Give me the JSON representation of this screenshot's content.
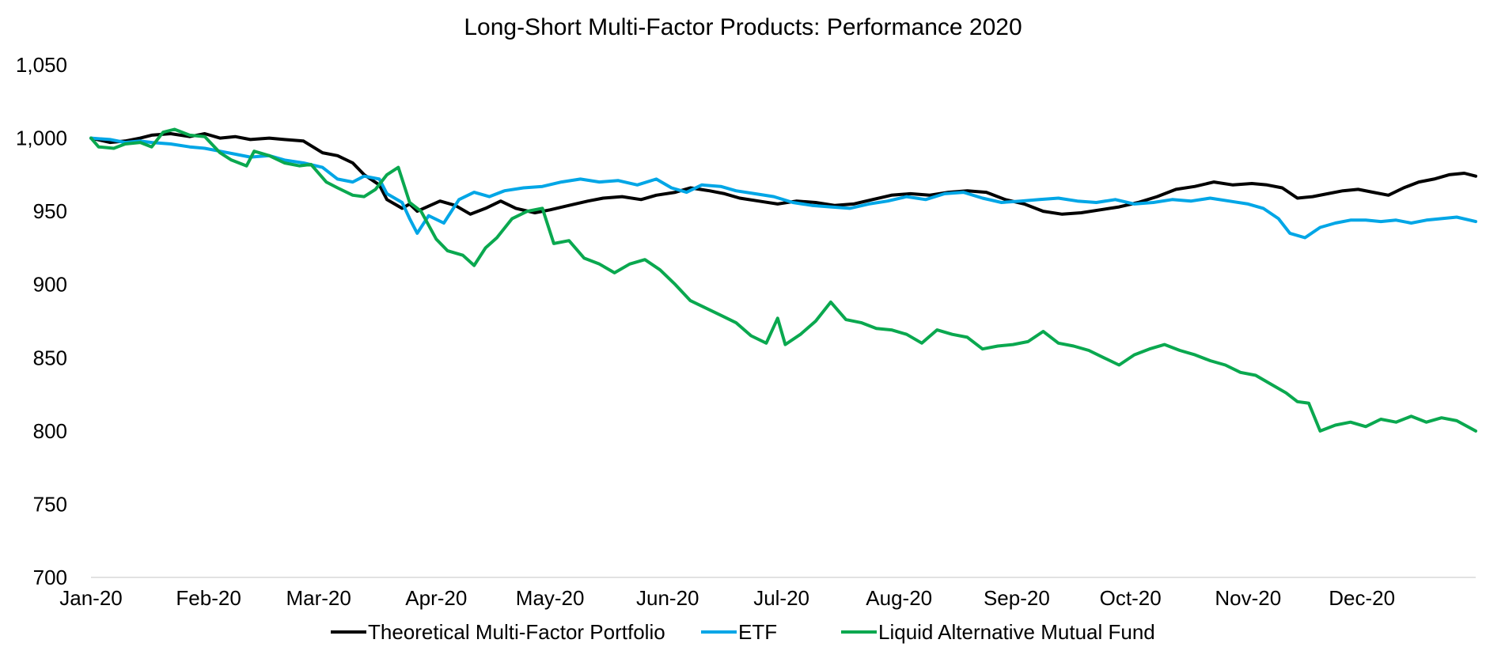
{
  "chart_data": {
    "type": "line",
    "title": "Long-Short Multi-Factor Products: Performance 2020",
    "xlabel": "",
    "ylabel": "",
    "x_tick_labels": [
      "Jan-20",
      "Feb-20",
      "Mar-20",
      "Apr-20",
      "May-20",
      "Jun-20",
      "Jul-20",
      "Aug-20",
      "Sep-20",
      "Oct-20",
      "Nov-20",
      "Dec-20"
    ],
    "x_range": [
      "2020-01-01",
      "2020-12-31"
    ],
    "y_tick_labels": [
      "700",
      "750",
      "800",
      "850",
      "900",
      "950",
      "1,000",
      "1,050"
    ],
    "ylim": [
      700,
      1050
    ],
    "y_ticks": [
      700,
      750,
      800,
      850,
      900,
      950,
      1000,
      1050
    ],
    "grid": false,
    "legend_position": "bottom",
    "series": [
      {
        "name": "Theoretical Multi-Factor Portfolio",
        "color": "#000000",
        "points": [
          [
            "2020-01-01",
            1000
          ],
          [
            "2020-01-06",
            997
          ],
          [
            "2020-01-10",
            998
          ],
          [
            "2020-01-14",
            1000
          ],
          [
            "2020-01-17",
            1002
          ],
          [
            "2020-01-22",
            1003
          ],
          [
            "2020-01-27",
            1001
          ],
          [
            "2020-01-31",
            1003
          ],
          [
            "2020-02-04",
            1000
          ],
          [
            "2020-02-08",
            1001
          ],
          [
            "2020-02-12",
            999
          ],
          [
            "2020-02-17",
            1000
          ],
          [
            "2020-02-21",
            999
          ],
          [
            "2020-02-26",
            998
          ],
          [
            "2020-03-02",
            990
          ],
          [
            "2020-03-06",
            988
          ],
          [
            "2020-03-10",
            983
          ],
          [
            "2020-03-13",
            975
          ],
          [
            "2020-03-17",
            968
          ],
          [
            "2020-03-19",
            958
          ],
          [
            "2020-03-23",
            952
          ],
          [
            "2020-03-25",
            955
          ],
          [
            "2020-03-27",
            950
          ],
          [
            "2020-04-02",
            957
          ],
          [
            "2020-04-06",
            954
          ],
          [
            "2020-04-10",
            948
          ],
          [
            "2020-04-14",
            952
          ],
          [
            "2020-04-18",
            957
          ],
          [
            "2020-04-22",
            952
          ],
          [
            "2020-04-27",
            949
          ],
          [
            "2020-05-01",
            951
          ],
          [
            "2020-05-06",
            954
          ],
          [
            "2020-05-11",
            957
          ],
          [
            "2020-05-15",
            959
          ],
          [
            "2020-05-20",
            960
          ],
          [
            "2020-05-25",
            958
          ],
          [
            "2020-05-29",
            961
          ],
          [
            "2020-06-03",
            963
          ],
          [
            "2020-06-07",
            966
          ],
          [
            "2020-06-12",
            964
          ],
          [
            "2020-06-16",
            962
          ],
          [
            "2020-06-20",
            959
          ],
          [
            "2020-06-25",
            957
          ],
          [
            "2020-06-30",
            955
          ],
          [
            "2020-07-05",
            957
          ],
          [
            "2020-07-10",
            956
          ],
          [
            "2020-07-15",
            954
          ],
          [
            "2020-07-20",
            955
          ],
          [
            "2020-07-25",
            958
          ],
          [
            "2020-07-30",
            961
          ],
          [
            "2020-08-04",
            962
          ],
          [
            "2020-08-09",
            961
          ],
          [
            "2020-08-14",
            963
          ],
          [
            "2020-08-19",
            964
          ],
          [
            "2020-08-24",
            963
          ],
          [
            "2020-08-29",
            958
          ],
          [
            "2020-09-03",
            955
          ],
          [
            "2020-09-08",
            950
          ],
          [
            "2020-09-13",
            948
          ],
          [
            "2020-09-18",
            949
          ],
          [
            "2020-09-23",
            951
          ],
          [
            "2020-09-28",
            953
          ],
          [
            "2020-10-03",
            956
          ],
          [
            "2020-10-08",
            960
          ],
          [
            "2020-10-13",
            965
          ],
          [
            "2020-10-18",
            967
          ],
          [
            "2020-10-23",
            970
          ],
          [
            "2020-10-28",
            968
          ],
          [
            "2020-11-02",
            969
          ],
          [
            "2020-11-06",
            968
          ],
          [
            "2020-11-10",
            966
          ],
          [
            "2020-11-14",
            959
          ],
          [
            "2020-11-18",
            960
          ],
          [
            "2020-11-22",
            962
          ],
          [
            "2020-11-26",
            964
          ],
          [
            "2020-11-30",
            965
          ],
          [
            "2020-12-04",
            963
          ],
          [
            "2020-12-08",
            961
          ],
          [
            "2020-12-12",
            966
          ],
          [
            "2020-12-16",
            970
          ],
          [
            "2020-12-20",
            972
          ],
          [
            "2020-12-24",
            975
          ],
          [
            "2020-12-28",
            976
          ],
          [
            "2020-12-31",
            974
          ]
        ]
      },
      {
        "name": "ETF",
        "color": "#00a6e6",
        "points": [
          [
            "2020-01-01",
            1000
          ],
          [
            "2020-01-06",
            999
          ],
          [
            "2020-01-10",
            997
          ],
          [
            "2020-01-14",
            998
          ],
          [
            "2020-01-17",
            997
          ],
          [
            "2020-01-22",
            996
          ],
          [
            "2020-01-27",
            994
          ],
          [
            "2020-01-31",
            993
          ],
          [
            "2020-02-04",
            991
          ],
          [
            "2020-02-08",
            989
          ],
          [
            "2020-02-12",
            987
          ],
          [
            "2020-02-17",
            988
          ],
          [
            "2020-02-21",
            985
          ],
          [
            "2020-02-26",
            983
          ],
          [
            "2020-03-02",
            980
          ],
          [
            "2020-03-06",
            972
          ],
          [
            "2020-03-10",
            970
          ],
          [
            "2020-03-13",
            974
          ],
          [
            "2020-03-17",
            972
          ],
          [
            "2020-03-19",
            962
          ],
          [
            "2020-03-23",
            956
          ],
          [
            "2020-03-25",
            945
          ],
          [
            "2020-03-27",
            935
          ],
          [
            "2020-03-30",
            947
          ],
          [
            "2020-04-03",
            942
          ],
          [
            "2020-04-07",
            958
          ],
          [
            "2020-04-11",
            963
          ],
          [
            "2020-04-15",
            960
          ],
          [
            "2020-04-19",
            964
          ],
          [
            "2020-04-24",
            966
          ],
          [
            "2020-04-29",
            967
          ],
          [
            "2020-05-04",
            970
          ],
          [
            "2020-05-09",
            972
          ],
          [
            "2020-05-14",
            970
          ],
          [
            "2020-05-19",
            971
          ],
          [
            "2020-05-24",
            968
          ],
          [
            "2020-05-29",
            972
          ],
          [
            "2020-06-02",
            966
          ],
          [
            "2020-06-06",
            963
          ],
          [
            "2020-06-10",
            968
          ],
          [
            "2020-06-15",
            967
          ],
          [
            "2020-06-19",
            964
          ],
          [
            "2020-06-24",
            962
          ],
          [
            "2020-06-29",
            960
          ],
          [
            "2020-07-04",
            956
          ],
          [
            "2020-07-09",
            954
          ],
          [
            "2020-07-14",
            953
          ],
          [
            "2020-07-19",
            952
          ],
          [
            "2020-07-24",
            955
          ],
          [
            "2020-07-29",
            957
          ],
          [
            "2020-08-03",
            960
          ],
          [
            "2020-08-08",
            958
          ],
          [
            "2020-08-13",
            962
          ],
          [
            "2020-08-18",
            963
          ],
          [
            "2020-08-23",
            959
          ],
          [
            "2020-08-28",
            956
          ],
          [
            "2020-09-02",
            957
          ],
          [
            "2020-09-07",
            958
          ],
          [
            "2020-09-12",
            959
          ],
          [
            "2020-09-17",
            957
          ],
          [
            "2020-09-22",
            956
          ],
          [
            "2020-09-27",
            958
          ],
          [
            "2020-10-02",
            955
          ],
          [
            "2020-10-07",
            956
          ],
          [
            "2020-10-12",
            958
          ],
          [
            "2020-10-17",
            957
          ],
          [
            "2020-10-22",
            959
          ],
          [
            "2020-10-27",
            957
          ],
          [
            "2020-11-01",
            955
          ],
          [
            "2020-11-05",
            952
          ],
          [
            "2020-11-09",
            945
          ],
          [
            "2020-11-12",
            935
          ],
          [
            "2020-11-16",
            932
          ],
          [
            "2020-11-20",
            939
          ],
          [
            "2020-11-24",
            942
          ],
          [
            "2020-11-28",
            944
          ],
          [
            "2020-12-02",
            944
          ],
          [
            "2020-12-06",
            943
          ],
          [
            "2020-12-10",
            944
          ],
          [
            "2020-12-14",
            942
          ],
          [
            "2020-12-18",
            944
          ],
          [
            "2020-12-22",
            945
          ],
          [
            "2020-12-26",
            946
          ],
          [
            "2020-12-31",
            943
          ]
        ]
      },
      {
        "name": "Liquid Alternative Mutual Fund",
        "color": "#0aa84f",
        "points": [
          [
            "2020-01-01",
            1000
          ],
          [
            "2020-01-03",
            994
          ],
          [
            "2020-01-07",
            993
          ],
          [
            "2020-01-10",
            996
          ],
          [
            "2020-01-14",
            997
          ],
          [
            "2020-01-17",
            994
          ],
          [
            "2020-01-20",
            1004
          ],
          [
            "2020-01-23",
            1006
          ],
          [
            "2020-01-27",
            1002
          ],
          [
            "2020-01-31",
            1001
          ],
          [
            "2020-02-04",
            990
          ],
          [
            "2020-02-07",
            985
          ],
          [
            "2020-02-11",
            981
          ],
          [
            "2020-02-13",
            991
          ],
          [
            "2020-02-17",
            988
          ],
          [
            "2020-02-21",
            983
          ],
          [
            "2020-02-25",
            981
          ],
          [
            "2020-02-28",
            982
          ],
          [
            "2020-03-03",
            970
          ],
          [
            "2020-03-06",
            966
          ],
          [
            "2020-03-10",
            961
          ],
          [
            "2020-03-13",
            960
          ],
          [
            "2020-03-16",
            965
          ],
          [
            "2020-03-19",
            975
          ],
          [
            "2020-03-22",
            980
          ],
          [
            "2020-03-25",
            956
          ],
          [
            "2020-03-28",
            950
          ],
          [
            "2020-04-01",
            931
          ],
          [
            "2020-04-04",
            923
          ],
          [
            "2020-04-08",
            920
          ],
          [
            "2020-04-11",
            913
          ],
          [
            "2020-04-14",
            925
          ],
          [
            "2020-04-17",
            932
          ],
          [
            "2020-04-21",
            945
          ],
          [
            "2020-04-25",
            950
          ],
          [
            "2020-04-29",
            952
          ],
          [
            "2020-05-02",
            928
          ],
          [
            "2020-05-06",
            930
          ],
          [
            "2020-05-10",
            918
          ],
          [
            "2020-05-14",
            914
          ],
          [
            "2020-05-18",
            908
          ],
          [
            "2020-05-22",
            914
          ],
          [
            "2020-05-26",
            917
          ],
          [
            "2020-05-30",
            910
          ],
          [
            "2020-06-03",
            900
          ],
          [
            "2020-06-07",
            889
          ],
          [
            "2020-06-11",
            884
          ],
          [
            "2020-06-15",
            879
          ],
          [
            "2020-06-19",
            874
          ],
          [
            "2020-06-23",
            865
          ],
          [
            "2020-06-27",
            860
          ],
          [
            "2020-06-30",
            877
          ],
          [
            "2020-07-02",
            859
          ],
          [
            "2020-07-06",
            866
          ],
          [
            "2020-07-10",
            875
          ],
          [
            "2020-07-14",
            888
          ],
          [
            "2020-07-18",
            876
          ],
          [
            "2020-07-22",
            874
          ],
          [
            "2020-07-26",
            870
          ],
          [
            "2020-07-30",
            869
          ],
          [
            "2020-08-03",
            866
          ],
          [
            "2020-08-07",
            860
          ],
          [
            "2020-08-11",
            869
          ],
          [
            "2020-08-15",
            866
          ],
          [
            "2020-08-19",
            864
          ],
          [
            "2020-08-23",
            856
          ],
          [
            "2020-08-27",
            858
          ],
          [
            "2020-08-31",
            859
          ],
          [
            "2020-09-04",
            861
          ],
          [
            "2020-09-08",
            868
          ],
          [
            "2020-09-12",
            860
          ],
          [
            "2020-09-16",
            858
          ],
          [
            "2020-09-20",
            855
          ],
          [
            "2020-09-24",
            850
          ],
          [
            "2020-09-28",
            845
          ],
          [
            "2020-10-02",
            852
          ],
          [
            "2020-10-06",
            856
          ],
          [
            "2020-10-10",
            859
          ],
          [
            "2020-10-14",
            855
          ],
          [
            "2020-10-18",
            852
          ],
          [
            "2020-10-22",
            848
          ],
          [
            "2020-10-26",
            845
          ],
          [
            "2020-10-30",
            840
          ],
          [
            "2020-11-03",
            838
          ],
          [
            "2020-11-07",
            832
          ],
          [
            "2020-11-11",
            826
          ],
          [
            "2020-11-14",
            820
          ],
          [
            "2020-11-17",
            819
          ],
          [
            "2020-11-20",
            800
          ],
          [
            "2020-11-24",
            804
          ],
          [
            "2020-11-28",
            806
          ],
          [
            "2020-12-02",
            803
          ],
          [
            "2020-12-06",
            808
          ],
          [
            "2020-12-10",
            806
          ],
          [
            "2020-12-14",
            810
          ],
          [
            "2020-12-18",
            806
          ],
          [
            "2020-12-22",
            809
          ],
          [
            "2020-12-26",
            807
          ],
          [
            "2020-12-31",
            800
          ]
        ]
      }
    ]
  }
}
